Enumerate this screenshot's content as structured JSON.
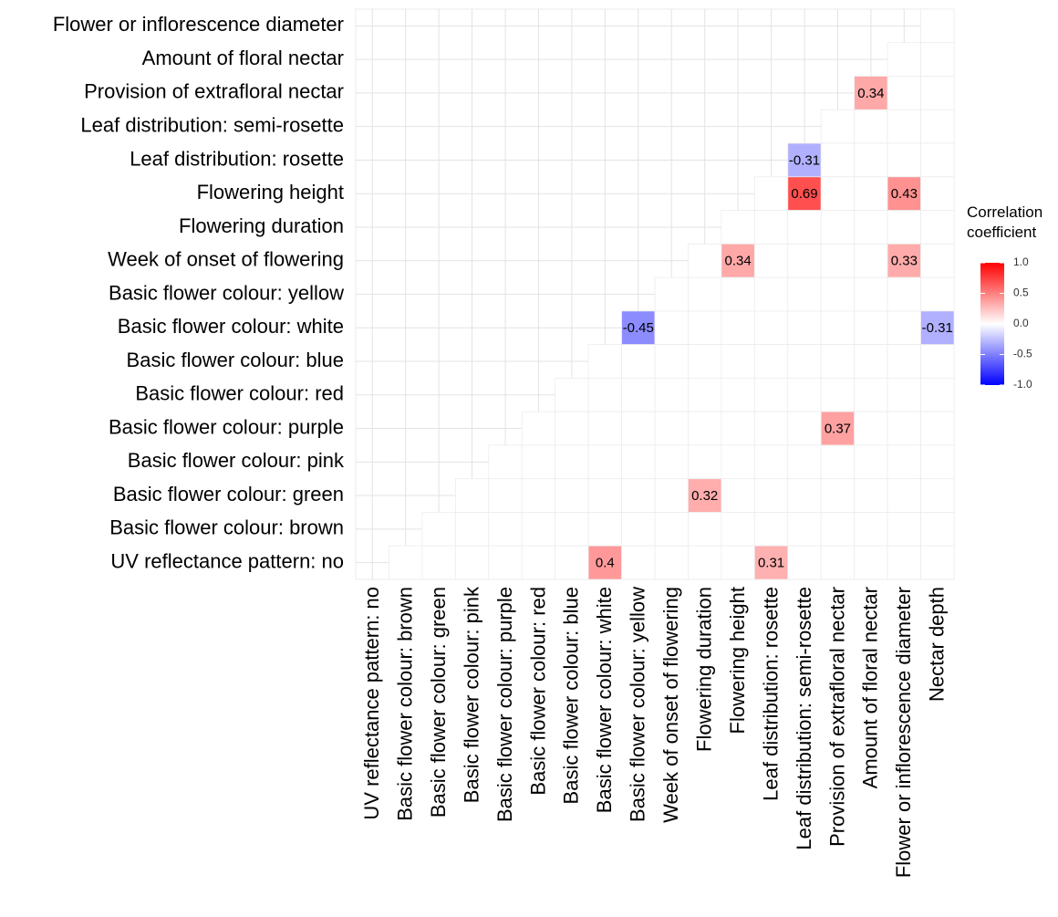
{
  "chart_data": {
    "type": "heatmap",
    "x_categories": [
      "UV reflectance pattern: no",
      "Basic flower colour: brown",
      "Basic flower colour: green",
      "Basic flower colour: pink",
      "Basic flower colour: purple",
      "Basic flower colour: red",
      "Basic flower colour: blue",
      "Basic flower colour: white",
      "Basic flower colour: yellow",
      "Week of onset of flowering",
      "Flowering duration",
      "Flowering height",
      "Leaf distribution: rosette",
      "Leaf distribution: semi-rosette",
      "Provision of extrafloral nectar",
      "Amount of floral nectar",
      "Flower or inflorescence diameter",
      "Nectar depth"
    ],
    "y_categories": [
      "Flower or inflorescence diameter",
      "Amount of floral nectar",
      "Provision of extrafloral nectar",
      "Leaf distribution: semi-rosette",
      "Leaf distribution: rosette",
      "Flowering height",
      "Flowering duration",
      "Week of onset of flowering",
      "Basic flower colour: yellow",
      "Basic flower colour: white",
      "Basic flower colour: blue",
      "Basic flower colour: red",
      "Basic flower colour: purple",
      "Basic flower colour: pink",
      "Basic flower colour: green",
      "Basic flower colour: brown",
      "UV reflectance pattern: no"
    ],
    "z": [
      [
        null,
        null,
        null,
        null,
        null,
        null,
        null,
        null,
        null,
        null,
        null,
        null,
        null,
        null,
        null,
        null,
        null,
        null
      ],
      [
        null,
        null,
        null,
        null,
        null,
        null,
        null,
        null,
        null,
        null,
        null,
        null,
        null,
        null,
        null,
        null,
        null,
        null
      ],
      [
        null,
        null,
        null,
        null,
        null,
        null,
        null,
        null,
        null,
        null,
        null,
        null,
        null,
        null,
        null,
        0.34,
        null,
        null
      ],
      [
        null,
        null,
        null,
        null,
        null,
        null,
        null,
        null,
        null,
        null,
        null,
        null,
        null,
        null,
        null,
        null,
        null,
        null
      ],
      [
        null,
        null,
        null,
        null,
        null,
        null,
        null,
        null,
        null,
        null,
        null,
        null,
        null,
        -0.31,
        null,
        null,
        null,
        null
      ],
      [
        null,
        null,
        null,
        null,
        null,
        null,
        null,
        null,
        null,
        null,
        null,
        null,
        null,
        0.69,
        null,
        null,
        0.43,
        null
      ],
      [
        null,
        null,
        null,
        null,
        null,
        null,
        null,
        null,
        null,
        null,
        null,
        null,
        null,
        null,
        null,
        null,
        null,
        null
      ],
      [
        null,
        null,
        null,
        null,
        null,
        null,
        null,
        null,
        null,
        null,
        null,
        0.34,
        null,
        null,
        null,
        null,
        0.33,
        null
      ],
      [
        null,
        null,
        null,
        null,
        null,
        null,
        null,
        null,
        null,
        null,
        null,
        null,
        null,
        null,
        null,
        null,
        null,
        null
      ],
      [
        null,
        null,
        null,
        null,
        null,
        null,
        null,
        null,
        -0.45,
        null,
        null,
        null,
        null,
        null,
        null,
        null,
        null,
        -0.31
      ],
      [
        null,
        null,
        null,
        null,
        null,
        null,
        null,
        null,
        null,
        null,
        null,
        null,
        null,
        null,
        null,
        null,
        null,
        null
      ],
      [
        null,
        null,
        null,
        null,
        null,
        null,
        null,
        null,
        null,
        null,
        null,
        null,
        null,
        null,
        null,
        null,
        null,
        null
      ],
      [
        null,
        null,
        null,
        null,
        null,
        null,
        null,
        null,
        null,
        null,
        null,
        null,
        null,
        null,
        0.37,
        null,
        null,
        null
      ],
      [
        null,
        null,
        null,
        null,
        null,
        null,
        null,
        null,
        null,
        null,
        null,
        null,
        null,
        null,
        null,
        null,
        null,
        null
      ],
      [
        null,
        null,
        null,
        null,
        null,
        null,
        null,
        null,
        null,
        null,
        0.32,
        null,
        null,
        null,
        null,
        null,
        null,
        null
      ],
      [
        null,
        null,
        null,
        null,
        null,
        null,
        null,
        null,
        null,
        null,
        null,
        null,
        null,
        null,
        null,
        null,
        null,
        null
      ],
      [
        null,
        null,
        null,
        null,
        null,
        null,
        null,
        0.4,
        null,
        null,
        null,
        null,
        0.31,
        null,
        null,
        null,
        null,
        null
      ]
    ],
    "colorbar": {
      "title": "Correlation coefficient",
      "low_color": "#0000ff",
      "mid_color": "#ffffff",
      "high_color": "#ff0000",
      "lim": [
        -1,
        1
      ],
      "ticks": [
        {
          "value": 1,
          "label": "1.0"
        },
        0.5,
        {
          "value": 0,
          "label": "0.0"
        },
        -0.5,
        {
          "value": -1,
          "label": "-1.0"
        }
      ]
    },
    "grid": true
  }
}
